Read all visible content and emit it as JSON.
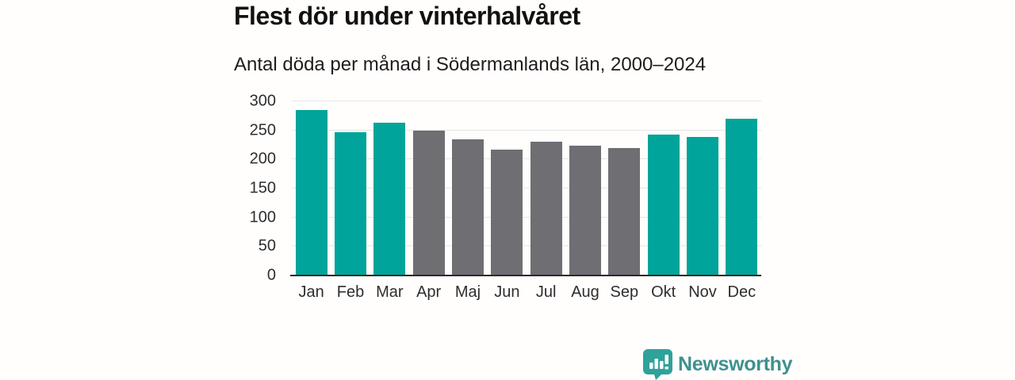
{
  "header": {
    "title": "Flest dör under vinterhalvåret",
    "subtitle": "Antal döda per månad i Södermanlands län, 2000–2024"
  },
  "branding": {
    "wordmark": "Newsworthy",
    "icon": "newsworthy-speech-bubble-bar-chart-icon",
    "icon_color": "#2fa29b",
    "text_color": "#3d918f"
  },
  "chart_data": {
    "type": "bar",
    "title": "Flest dör under vinterhalvåret",
    "subtitle": "Antal döda per månad i Södermanlands län, 2000–2024",
    "xlabel": "",
    "ylabel": "",
    "categories": [
      "Jan",
      "Feb",
      "Mar",
      "Apr",
      "Maj",
      "Jun",
      "Jul",
      "Aug",
      "Sep",
      "Okt",
      "Nov",
      "Dec"
    ],
    "values": [
      285,
      247,
      263,
      250,
      235,
      217,
      231,
      224,
      220,
      243,
      239,
      270
    ],
    "highlighted": [
      true,
      true,
      true,
      false,
      false,
      false,
      false,
      false,
      false,
      true,
      true,
      true
    ],
    "ylim": [
      0,
      300
    ],
    "yticks": [
      0,
      50,
      100,
      150,
      200,
      250,
      300
    ],
    "grid": true,
    "legend": false,
    "colors": {
      "highlight_bar": "#00a49a",
      "normal_bar": "#6f6e73",
      "gridline": "#e6e6e6",
      "axis_line": "#2b2b2b"
    }
  }
}
